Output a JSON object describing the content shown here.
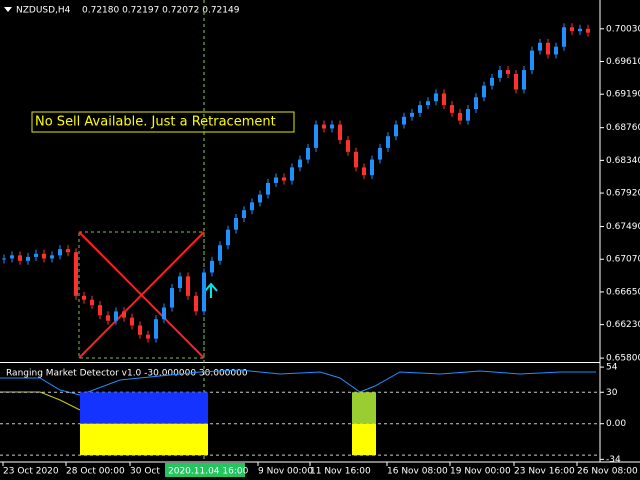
{
  "header": {
    "symbol": "NZDUSD,H4",
    "quote": "0.72180 0.72197 0.72072 0.72149"
  },
  "annotation": "No Sell Available. Just a Retracement",
  "price_chart": {
    "type": "candlestick",
    "ylim": [
      0.6575,
      0.704
    ],
    "yticks": [
      {
        "value": 0.7003,
        "label": "0.70030"
      },
      {
        "value": 0.6961,
        "label": "0.69610"
      },
      {
        "value": 0.6919,
        "label": "0.69190"
      },
      {
        "value": 0.6876,
        "label": "0.68760"
      },
      {
        "value": 0.6834,
        "label": "0.68340"
      },
      {
        "value": 0.6792,
        "label": "0.67920"
      },
      {
        "value": 0.6749,
        "label": "0.67490"
      },
      {
        "value": 0.6707,
        "label": "0.67070"
      },
      {
        "value": 0.6665,
        "label": "0.66650"
      },
      {
        "value": 0.6623,
        "label": "0.66230"
      },
      {
        "value": 0.658,
        "label": "0.65800"
      }
    ],
    "up_color": "#1e90ff",
    "down_color": "#ff3030",
    "closes": [
      0.6708,
      0.6712,
      0.6705,
      0.671,
      0.6714,
      0.6708,
      0.6712,
      0.672,
      0.6716,
      0.666,
      0.6655,
      0.6648,
      0.6635,
      0.6628,
      0.664,
      0.6632,
      0.6622,
      0.661,
      0.6605,
      0.663,
      0.6645,
      0.667,
      0.6685,
      0.666,
      0.664,
      0.669,
      0.6705,
      0.6725,
      0.6745,
      0.676,
      0.677,
      0.678,
      0.679,
      0.6805,
      0.6812,
      0.6808,
      0.6825,
      0.6835,
      0.685,
      0.688,
      0.6875,
      0.688,
      0.686,
      0.6845,
      0.6825,
      0.6815,
      0.6835,
      0.685,
      0.6865,
      0.688,
      0.689,
      0.6895,
      0.6905,
      0.691,
      0.692,
      0.6905,
      0.6895,
      0.6885,
      0.69,
      0.6915,
      0.693,
      0.694,
      0.695,
      0.6945,
      0.6925,
      0.695,
      0.6975,
      0.6985,
      0.697,
      0.698,
      0.7005,
      0.7,
      0.7003,
      0.6998
    ]
  },
  "indicator": {
    "title": "Ranging Market Detector v1.0 -30.000000 30.000000",
    "ylim": [
      -37,
      56
    ],
    "yticks": [
      54,
      30,
      {
        "value": 0,
        "label": "0.00"
      },
      -34
    ],
    "levels": [
      30,
      0,
      -30
    ],
    "zones": [
      {
        "start": 10,
        "end": 22,
        "upper": 30,
        "lower": -30,
        "upper_color": "#1433ff",
        "lower_color": "#ffff00"
      },
      {
        "start": 23,
        "end": 25,
        "upper": 30,
        "lower": -30,
        "upper_color": "#1433ff",
        "lower_color": "#ffff00"
      },
      {
        "start": 44,
        "end": 46,
        "upper": 30,
        "lower": -30,
        "upper_color": "#9acd32",
        "lower_color": "#ffff00"
      }
    ]
  },
  "time_axis": [
    "23 Oct 2020",
    "28 Oct 00:00",
    "30 Oct",
    "9 Nov 00:00",
    "11 Nov 16:00",
    "16 Nov 08:00",
    "19 Nov 00:00",
    "23 Nov 16:00",
    "26 Nov 08:00"
  ],
  "crosshair_time": "2020.11.04 16:00"
}
